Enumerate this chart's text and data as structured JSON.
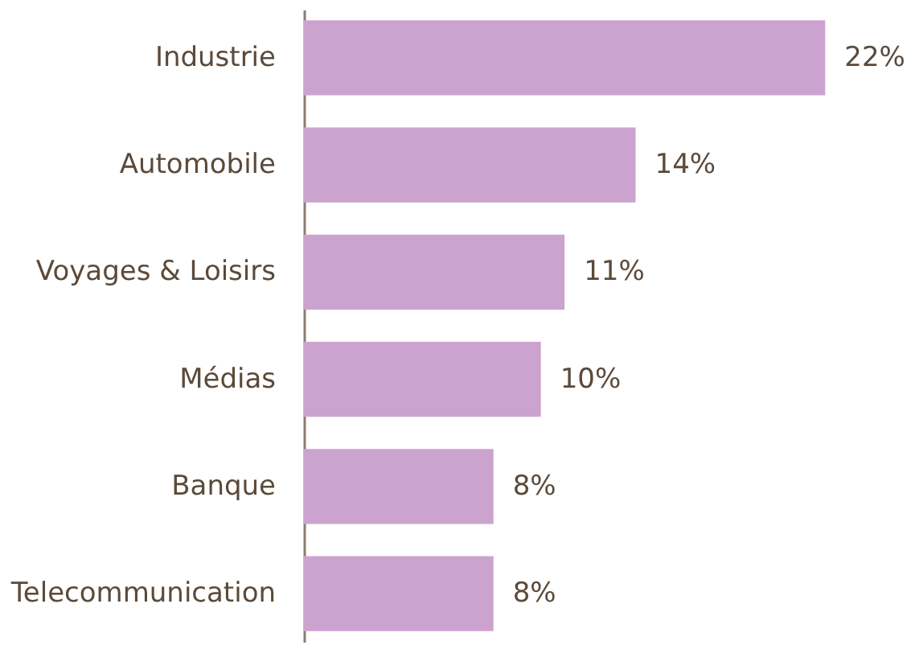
{
  "chart_data": {
    "type": "bar",
    "orientation": "horizontal",
    "categories": [
      "Industrie",
      "Automobile",
      "Voyages & Loisirs",
      "Médias",
      "Banque",
      "Telecommunication"
    ],
    "values": [
      22,
      14,
      11,
      10,
      8,
      8
    ],
    "value_labels": [
      "22%",
      "14%",
      "11%",
      "10%",
      "8%",
      "8%"
    ],
    "color": "#cca3cf"
  }
}
